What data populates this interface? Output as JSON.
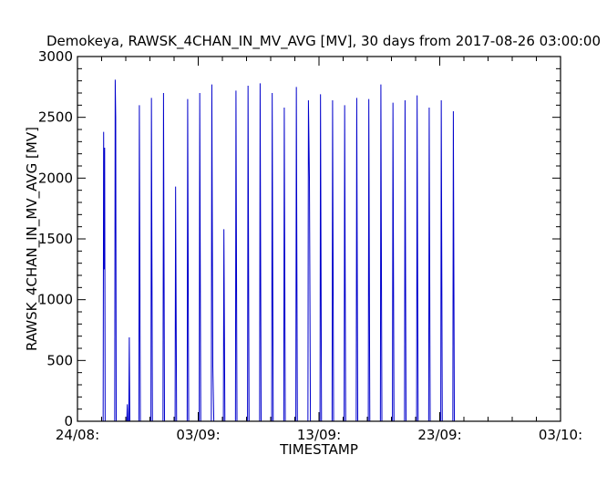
{
  "chart_data": {
    "type": "line",
    "title": "Demokeya, RAWSK_4CHAN_IN_MV_AVG [MV], 30 days from  2017-08-26 03:00:00",
    "xlabel": "TIMESTAMP",
    "ylabel": "RAWSK_4CHAN_IN_MV_AVG [MV]",
    "ylim": [
      0,
      3000
    ],
    "yticks": [
      0,
      500,
      1000,
      1500,
      2000,
      2500,
      3000
    ],
    "ytick_labels": [
      "0",
      "500",
      "1000",
      "1500",
      "2000",
      "2500",
      "3000"
    ],
    "xlim": [
      "2017-08-24",
      "2017-10-03"
    ],
    "xticks": [
      "2017-08-24",
      "2017-09-03",
      "2017-09-13",
      "2017-09-23",
      "2017-10-03"
    ],
    "xtick_labels": [
      "24/08:",
      "03/09:",
      "13/09:",
      "23/09:",
      "03/10:"
    ],
    "grid": false,
    "line_color": "#0000cc",
    "series": [
      {
        "values_note_units": "MV",
        "points": [
          [
            "2017-08-26 03:00",
            0
          ],
          [
            "2017-08-26 04:00",
            2380
          ],
          [
            "2017-08-26 05:00",
            1250
          ],
          [
            "2017-08-26 06:00",
            2250
          ],
          [
            "2017-08-26 07:00",
            0
          ],
          [
            "2017-08-27 02:00",
            0
          ],
          [
            "2017-08-27 03:00",
            2810
          ],
          [
            "2017-08-27 04:00",
            2500
          ],
          [
            "2017-08-27 05:00",
            0
          ],
          [
            "2017-08-28 02:00",
            0
          ],
          [
            "2017-08-28 03:00",
            140
          ],
          [
            "2017-08-28 04:00",
            0
          ],
          [
            "2017-08-28 06:00",
            0
          ],
          [
            "2017-08-28 07:00",
            690
          ],
          [
            "2017-08-28 08:00",
            0
          ],
          [
            "2017-08-29 02:00",
            0
          ],
          [
            "2017-08-29 03:00",
            2600
          ],
          [
            "2017-08-29 05:00",
            0
          ],
          [
            "2017-08-30 02:00",
            0
          ],
          [
            "2017-08-30 03:00",
            2660
          ],
          [
            "2017-08-30 05:00",
            0
          ],
          [
            "2017-08-31 02:00",
            0
          ],
          [
            "2017-08-31 03:00",
            2700
          ],
          [
            "2017-08-31 05:00",
            0
          ],
          [
            "2017-09-01 02:00",
            0
          ],
          [
            "2017-09-01 03:00",
            1930
          ],
          [
            "2017-09-01 05:00",
            0
          ],
          [
            "2017-09-02 02:00",
            0
          ],
          [
            "2017-09-02 03:00",
            2650
          ],
          [
            "2017-09-02 05:00",
            0
          ],
          [
            "2017-09-03 02:00",
            0
          ],
          [
            "2017-09-03 03:00",
            2700
          ],
          [
            "2017-09-03 05:00",
            0
          ],
          [
            "2017-09-04 02:00",
            0
          ],
          [
            "2017-09-04 03:00",
            2770
          ],
          [
            "2017-09-04 05:00",
            450
          ],
          [
            "2017-09-04 07:00",
            0
          ],
          [
            "2017-09-05 02:00",
            0
          ],
          [
            "2017-09-05 03:00",
            1580
          ],
          [
            "2017-09-05 05:00",
            0
          ],
          [
            "2017-09-06 02:00",
            0
          ],
          [
            "2017-09-06 03:00",
            2720
          ],
          [
            "2017-09-06 05:00",
            0
          ],
          [
            "2017-09-07 02:00",
            0
          ],
          [
            "2017-09-07 03:00",
            2760
          ],
          [
            "2017-09-07 05:00",
            0
          ],
          [
            "2017-09-08 02:00",
            0
          ],
          [
            "2017-09-08 03:00",
            2780
          ],
          [
            "2017-09-08 05:00",
            0
          ],
          [
            "2017-09-09 02:00",
            0
          ],
          [
            "2017-09-09 03:00",
            2700
          ],
          [
            "2017-09-09 05:00",
            0
          ],
          [
            "2017-09-10 02:00",
            0
          ],
          [
            "2017-09-10 03:00",
            2580
          ],
          [
            "2017-09-10 05:00",
            0
          ],
          [
            "2017-09-11 02:00",
            0
          ],
          [
            "2017-09-11 03:00",
            2750
          ],
          [
            "2017-09-11 05:00",
            0
          ],
          [
            "2017-09-12 02:00",
            0
          ],
          [
            "2017-09-12 03:00",
            2640
          ],
          [
            "2017-09-12 05:00",
            2000
          ],
          [
            "2017-09-12 07:00",
            0
          ],
          [
            "2017-09-13 02:00",
            0
          ],
          [
            "2017-09-13 03:00",
            2690
          ],
          [
            "2017-09-13 05:00",
            0
          ],
          [
            "2017-09-14 02:00",
            0
          ],
          [
            "2017-09-14 03:00",
            2640
          ],
          [
            "2017-09-14 05:00",
            0
          ],
          [
            "2017-09-15 02:00",
            0
          ],
          [
            "2017-09-15 03:00",
            2600
          ],
          [
            "2017-09-15 05:00",
            0
          ],
          [
            "2017-09-16 02:00",
            0
          ],
          [
            "2017-09-16 03:00",
            2660
          ],
          [
            "2017-09-16 05:00",
            0
          ],
          [
            "2017-09-17 02:00",
            0
          ],
          [
            "2017-09-17 03:00",
            2650
          ],
          [
            "2017-09-17 05:00",
            0
          ],
          [
            "2017-09-18 02:00",
            0
          ],
          [
            "2017-09-18 03:00",
            2770
          ],
          [
            "2017-09-18 05:00",
            0
          ],
          [
            "2017-09-19 02:00",
            0
          ],
          [
            "2017-09-19 03:00",
            2620
          ],
          [
            "2017-09-19 05:00",
            0
          ],
          [
            "2017-09-20 02:00",
            0
          ],
          [
            "2017-09-20 03:00",
            2640
          ],
          [
            "2017-09-20 05:00",
            0
          ],
          [
            "2017-09-21 02:00",
            0
          ],
          [
            "2017-09-21 03:00",
            2680
          ],
          [
            "2017-09-21 05:00",
            0
          ],
          [
            "2017-09-22 02:00",
            0
          ],
          [
            "2017-09-22 03:00",
            2580
          ],
          [
            "2017-09-22 05:00",
            0
          ],
          [
            "2017-09-23 02:00",
            0
          ],
          [
            "2017-09-23 03:00",
            2640
          ],
          [
            "2017-09-23 05:00",
            0
          ],
          [
            "2017-09-24 02:00",
            0
          ],
          [
            "2017-09-24 03:00",
            2550
          ],
          [
            "2017-09-24 05:00",
            0
          ]
        ]
      }
    ]
  }
}
